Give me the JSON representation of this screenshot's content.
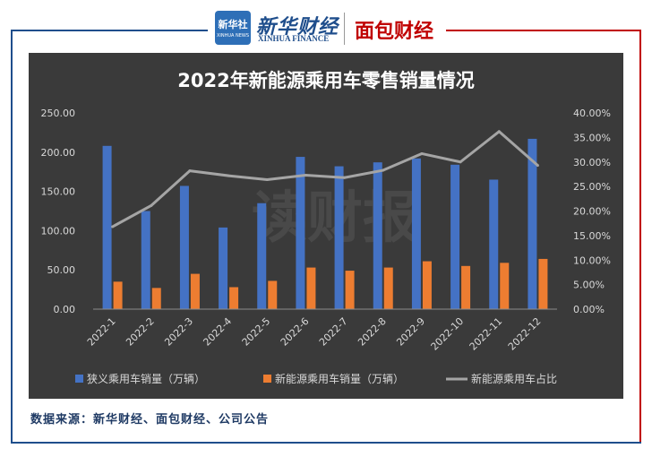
{
  "header": {
    "logo_text_top": "新华社",
    "logo_text_bottom": "XINHUA NEWS",
    "brand_cn": "新华财经",
    "brand_en": "XINHUA FINANCE",
    "brand2": "面包财经"
  },
  "watermark": "读财报",
  "source": "数据来源：新华财经、面包财经、公司公告",
  "colors": {
    "bar1": "#4472c4",
    "bar2": "#ed7d31",
    "line": "#a5a5a5",
    "panel": "#3a3a3a"
  },
  "chart_data": {
    "type": "bar",
    "title": "2022年新能源乘用车零售销量情况",
    "categories": [
      "2022-1",
      "2022-2",
      "2022-3",
      "2022-4",
      "2022-5",
      "2022-6",
      "2022-7",
      "2022-8",
      "2022-9",
      "2022-10",
      "2022-11",
      "2022-12"
    ],
    "series": [
      {
        "name": "狭义乘用车销量（万辆）",
        "type": "bar",
        "axis": "left",
        "values": [
          208,
          125,
          157,
          104,
          135,
          194,
          182,
          187,
          192,
          184,
          165,
          217
        ]
      },
      {
        "name": "新能源乘用车销量（万辆）",
        "type": "bar",
        "axis": "left",
        "values": [
          35,
          27,
          45,
          28,
          36,
          53,
          49,
          53,
          61,
          55,
          59,
          64
        ]
      },
      {
        "name": "新能源乘用车占比",
        "type": "line",
        "axis": "right",
        "values": [
          16.8,
          21.1,
          28.2,
          27.2,
          26.4,
          27.3,
          26.8,
          28.3,
          31.7,
          30.0,
          36.2,
          29.3
        ]
      }
    ],
    "ylim_left": [
      0,
      250
    ],
    "ylim_right": [
      0,
      40
    ],
    "yticks_left": [
      "0.00",
      "50.00",
      "100.00",
      "150.00",
      "200.00",
      "250.00"
    ],
    "yticks_right": [
      "0.00%",
      "5.00%",
      "10.00%",
      "15.00%",
      "20.00%",
      "25.00%",
      "30.00%",
      "35.00%",
      "40.00%"
    ],
    "grid": false,
    "legend": "bottom"
  }
}
